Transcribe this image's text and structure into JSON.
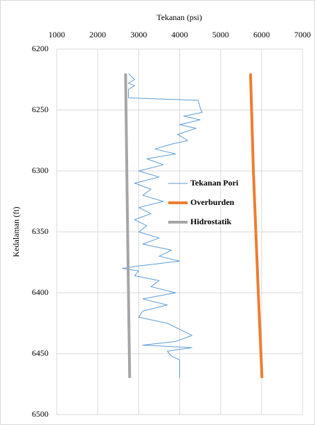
{
  "chart_data": {
    "type": "line",
    "title": "Tekanan (psi)",
    "y_label": "Kedalaman (ft)",
    "xlim": [
      1000,
      7000
    ],
    "xticks": [
      1000,
      2000,
      3000,
      4000,
      5000,
      6000,
      7000
    ],
    "ylim": [
      6200,
      6500
    ],
    "yticks": [
      6200,
      6250,
      6300,
      6350,
      6400,
      6450,
      6500
    ],
    "y_reversed": true,
    "x_axis_top": true,
    "grid": true,
    "legend": "right",
    "series": [
      {
        "name": "Tekanan Pori",
        "color": "#5b9bd5",
        "width": 1,
        "x": [
          2750,
          2900,
          2750,
          2900,
          2750,
          2750,
          4450,
          4500,
          4550,
          4100,
          4500,
          4000,
          4400,
          3950,
          4200,
          3800,
          3400,
          3900,
          3200,
          3600,
          3000,
          3500,
          2900,
          3300,
          3100,
          3600,
          3000,
          3300,
          2900,
          3200,
          3000,
          3500,
          3100,
          3800,
          3500,
          4000,
          3000,
          2600,
          3000,
          2900,
          3500,
          3300,
          3900,
          3100,
          3700,
          3100,
          3000,
          3700,
          4000,
          4300,
          3900,
          3100,
          4300,
          3700,
          3800,
          4000,
          4000,
          4000
        ],
        "y": [
          6220,
          6225,
          6228,
          6230,
          6233,
          6240,
          6242,
          6248,
          6252,
          6255,
          6258,
          6262,
          6265,
          6270,
          6275,
          6278,
          6282,
          6286,
          6290,
          6295,
          6300,
          6305,
          6310,
          6315,
          6320,
          6325,
          6330,
          6335,
          6340,
          6345,
          6350,
          6355,
          6360,
          6365,
          6370,
          6374,
          6378,
          6380,
          6382,
          6386,
          6390,
          6395,
          6400,
          6405,
          6410,
          6415,
          6420,
          6425,
          6430,
          6435,
          6440,
          6443,
          6445,
          6448,
          6452,
          6455,
          6460,
          6470
        ]
      },
      {
        "name": "Overburden",
        "color": "#ed7d31",
        "width": 4,
        "x": [
          5730,
          5800,
          5920,
          6010
        ],
        "y": [
          6220,
          6300,
          6400,
          6470
        ]
      },
      {
        "name": "Hidrostatik",
        "color": "#a5a5a5",
        "width": 4,
        "x": [
          2680,
          2710,
          2750,
          2780
        ],
        "y": [
          6220,
          6300,
          6400,
          6470
        ]
      }
    ]
  }
}
